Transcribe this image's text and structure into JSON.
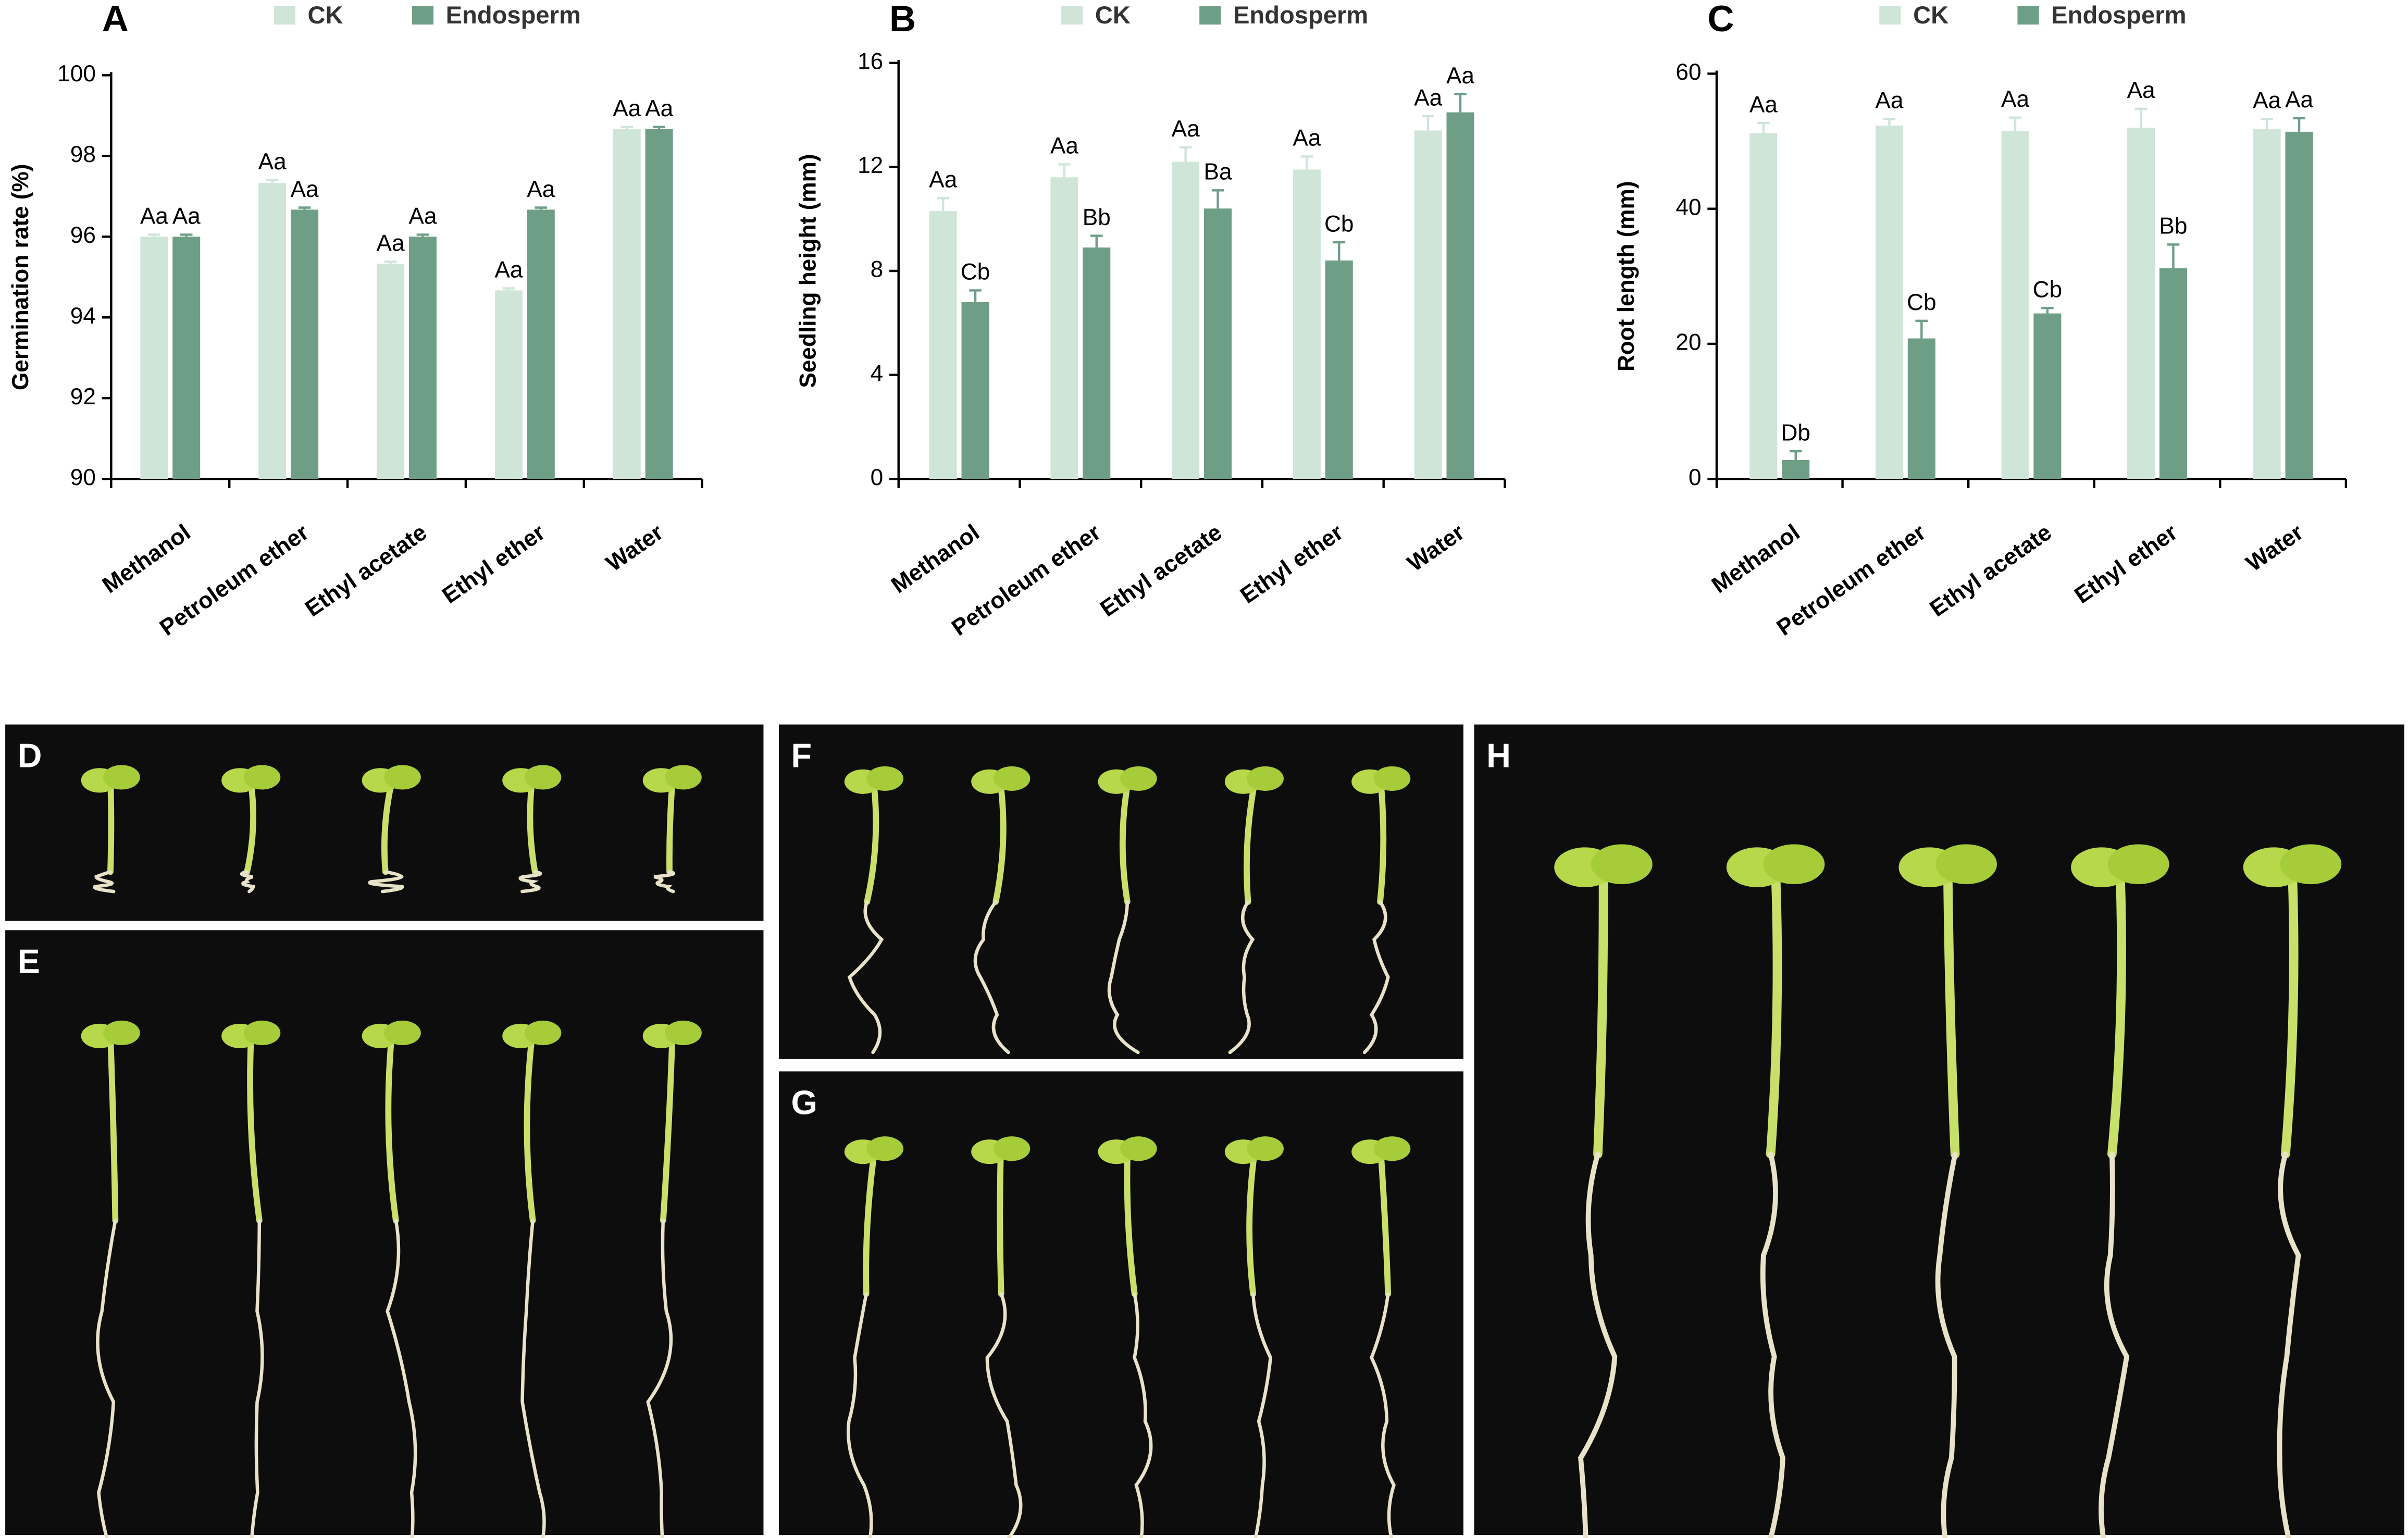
{
  "chart_data": [
    {
      "type": "bar",
      "panel": "A",
      "y_label": "Germination rate (%)",
      "categories": [
        "Methanol",
        "Petroleum ether",
        "Ethyl acetate",
        "Ethyl ether",
        "Water"
      ],
      "series": [
        {
          "name": "CK",
          "color": "#cfe5d8",
          "values": [
            96.0,
            97.33,
            95.33,
            94.67,
            98.67
          ],
          "errors": [
            0.05,
            0.07,
            0.05,
            0.05,
            0.05
          ],
          "significance": [
            "Aa",
            "Aa",
            "Aa",
            "Aa",
            "Aa"
          ]
        },
        {
          "name": "Endosperm",
          "color": "#6f9e86",
          "values": [
            96.0,
            96.67,
            96.0,
            96.67,
            98.67
          ],
          "errors": [
            0.05,
            0.05,
            0.05,
            0.05,
            0.05
          ],
          "significance": [
            "Aa",
            "Aa",
            "Aa",
            "Aa",
            "Aa"
          ]
        }
      ],
      "ylim": [
        90,
        100
      ],
      "yticks": [
        90,
        92,
        94,
        96,
        98,
        100
      ]
    },
    {
      "type": "bar",
      "panel": "B",
      "y_label": "Seedling height (mm)",
      "categories": [
        "Methanol",
        "Petroleum ether",
        "Ethyl acetate",
        "Ethyl ether",
        "Water"
      ],
      "series": [
        {
          "name": "CK",
          "color": "#cfe5d8",
          "values": [
            10.3,
            11.6,
            12.2,
            11.9,
            13.4
          ],
          "errors": [
            0.5,
            0.5,
            0.55,
            0.5,
            0.55
          ],
          "significance": [
            "Aa",
            "Aa",
            "Aa",
            "Aa",
            "Aa"
          ]
        },
        {
          "name": "Endosperm",
          "color": "#6f9e86",
          "values": [
            6.8,
            8.9,
            10.4,
            8.4,
            14.1
          ],
          "errors": [
            0.45,
            0.45,
            0.7,
            0.7,
            0.7
          ],
          "significance": [
            "Cb",
            "Bb",
            "Ba",
            "Cb",
            "Aa"
          ]
        }
      ],
      "ylim": [
        0,
        16
      ],
      "yticks": [
        0,
        4,
        8,
        12,
        16
      ]
    },
    {
      "type": "bar",
      "panel": "C",
      "y_label": "Root length (mm)",
      "categories": [
        "Methanol",
        "Petroleum ether",
        "Ethyl acetate",
        "Ethyl ether",
        "Water"
      ],
      "series": [
        {
          "name": "CK",
          "color": "#cfe5d8",
          "values": [
            51.2,
            52.3,
            51.5,
            52.0,
            51.8
          ],
          "errors": [
            1.5,
            1.0,
            2.0,
            2.8,
            1.5
          ],
          "significance": [
            "Aa",
            "Aa",
            "Aa",
            "Aa",
            "Aa"
          ]
        },
        {
          "name": "Endosperm",
          "color": "#6f9e86",
          "values": [
            2.8,
            20.8,
            24.5,
            31.2,
            51.4
          ],
          "errors": [
            1.3,
            2.6,
            0.8,
            3.5,
            2.0
          ],
          "significance": [
            "Db",
            "Cb",
            "Cb",
            "Bb",
            "Aa"
          ]
        }
      ],
      "ylim": [
        0,
        60
      ],
      "yticks": [
        0,
        20,
        40,
        60
      ]
    }
  ],
  "photo_panels": [
    "D",
    "E",
    "F",
    "G",
    "H"
  ]
}
